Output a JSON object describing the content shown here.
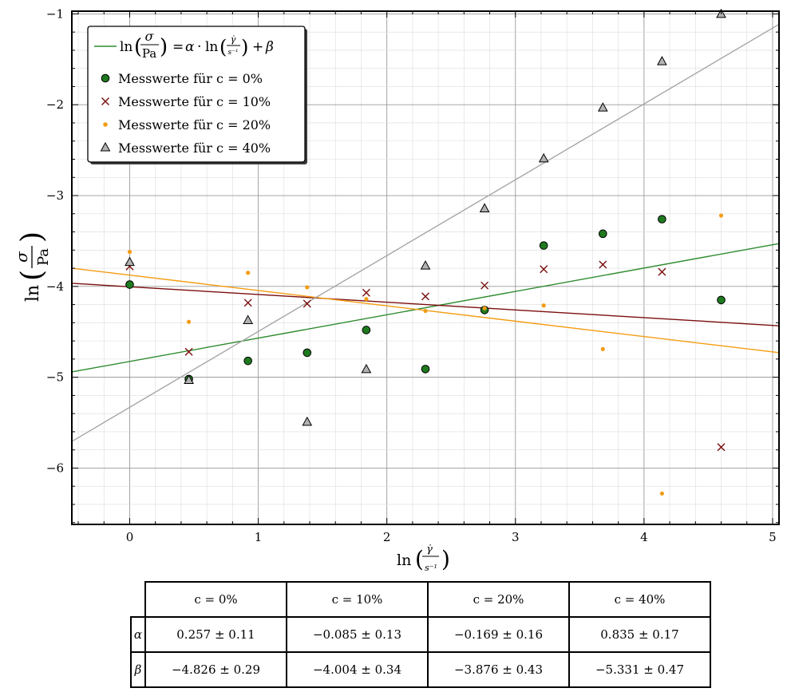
{
  "chart_data": {
    "type": "scatter",
    "xlabel": "ln(γ̇ / s⁻¹)",
    "ylabel": "ln(σ / Pa)",
    "xlim": [
      -0.45,
      5.05
    ],
    "ylim": [
      -6.62,
      -0.97
    ],
    "x_ticks": [
      "0",
      "1",
      "2",
      "3",
      "4",
      "5"
    ],
    "y_ticks": [
      "−1",
      "−2",
      "−3",
      "−4",
      "−5",
      "−6"
    ],
    "grid": true,
    "legend_placement": "top-left",
    "legend": {
      "fit": "ln(σ/Pa) = α · ln(γ̇/s⁻¹) + β",
      "entries": [
        "Messwerte für c = 0%",
        "Messwerte für c = 10%",
        "Messwerte für c = 20%",
        "Messwerte für c = 40%"
      ]
    },
    "x": [
      0,
      0.46,
      0.92,
      1.38,
      1.84,
      2.3,
      2.76,
      3.22,
      3.68,
      4.14,
      4.6
    ],
    "series": [
      {
        "name": "Messwerte für c = 0%",
        "marker": "circle",
        "color": "#1f7a1f",
        "values": [
          -3.98,
          -5.02,
          -4.82,
          -4.73,
          -4.48,
          -4.91,
          -4.26,
          -3.55,
          -3.42,
          -3.26,
          -4.15
        ],
        "fit": {
          "alpha": 0.257,
          "beta": -4.826
        }
      },
      {
        "name": "Messwerte für c = 10%",
        "marker": "x",
        "color": "#7a0d0d",
        "values": [
          -3.78,
          -4.72,
          -4.18,
          -4.19,
          -4.07,
          -4.11,
          -3.99,
          -3.81,
          -3.76,
          -3.84,
          -5.77
        ],
        "fit": {
          "alpha": -0.085,
          "beta": -4.004
        }
      },
      {
        "name": "Messwerte für c = 20%",
        "marker": "dot",
        "color": "#f39c12",
        "values": [
          -3.62,
          -4.39,
          -3.85,
          -4.01,
          -4.14,
          -4.27,
          -4.24,
          -4.21,
          -4.69,
          -6.28,
          -3.22
        ],
        "fit": {
          "alpha": -0.169,
          "beta": -3.876
        }
      },
      {
        "name": "Messwerte für c = 40%",
        "marker": "triangle",
        "color": "#a6a6a6",
        "values": [
          -3.73,
          -5.03,
          -4.37,
          -5.49,
          -4.91,
          -3.77,
          -3.14,
          -2.59,
          -2.03,
          -1.52,
          -1.0
        ],
        "fit": {
          "alpha": 0.835,
          "beta": -5.331
        }
      }
    ],
    "fit_colors": [
      "#2e8b2e",
      "#7a0d0d",
      "#f39c12",
      "#a6a6a6"
    ]
  },
  "table": {
    "headers": [
      "c = 0%",
      "c = 10%",
      "c = 20%",
      "c = 40%"
    ],
    "rows": [
      {
        "label": "α",
        "values": [
          "0.257 ± 0.11",
          "−0.085 ± 0.13",
          "−0.169 ± 0.16",
          "0.835 ± 0.17"
        ]
      },
      {
        "label": "β",
        "values": [
          "−4.826 ± 0.29",
          "−4.004 ± 0.34",
          "−3.876 ± 0.43",
          "−5.331 ± 0.47"
        ]
      }
    ]
  }
}
